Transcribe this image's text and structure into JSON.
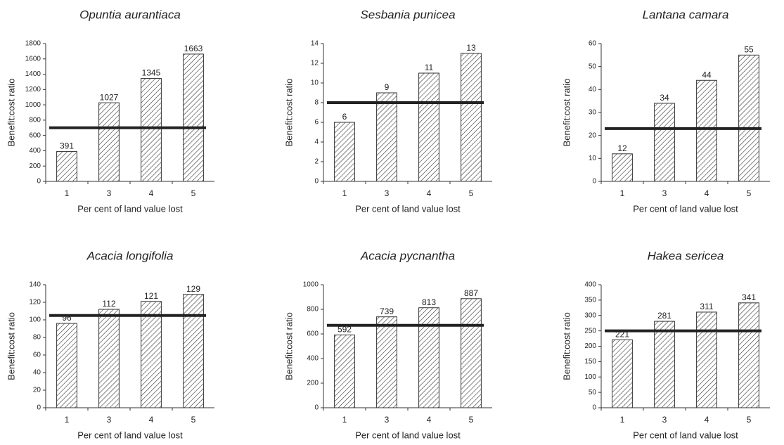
{
  "chart_data": [
    {
      "type": "bar",
      "title": "Opuntia aurantiaca",
      "categories": [
        "1",
        "3",
        "4",
        "5"
      ],
      "values": [
        391,
        1027,
        1345,
        1663
      ],
      "reference_line": 700,
      "xlabel": "Per cent of land value lost",
      "ylabel": "Benefit:cost ratio",
      "ylim": [
        0,
        1800
      ],
      "yticks": [
        0,
        200,
        400,
        600,
        800,
        1000,
        1200,
        1400,
        1600,
        1800
      ],
      "color": "#333333",
      "reference_color": "#222222"
    },
    {
      "type": "bar",
      "title": "Sesbania punicea",
      "categories": [
        "1",
        "3",
        "4",
        "5"
      ],
      "values": [
        6,
        9,
        11,
        13
      ],
      "reference_line": 8,
      "xlabel": "Per cent of land value lost",
      "ylabel": "Benefit:cost ratio",
      "ylim": [
        0,
        14
      ],
      "yticks": [
        0,
        2,
        4,
        6,
        8,
        10,
        12,
        14
      ],
      "color": "#333333",
      "reference_color": "#222222"
    },
    {
      "type": "bar",
      "title": "Lantana camara",
      "categories": [
        "1",
        "3",
        "4",
        "5"
      ],
      "values": [
        12,
        34,
        44,
        55
      ],
      "reference_line": 23,
      "xlabel": "Per cent of land value lost",
      "ylabel": "Benefit:cost ratio",
      "ylim": [
        0,
        60
      ],
      "yticks": [
        0,
        10,
        20,
        30,
        40,
        50,
        60
      ],
      "color": "#333333",
      "reference_color": "#222222"
    },
    {
      "type": "bar",
      "title": "Acacia longifolia",
      "categories": [
        "1",
        "3",
        "4",
        "5"
      ],
      "values": [
        96,
        112,
        121,
        129
      ],
      "reference_line": 105,
      "xlabel": "Per cent of land value lost",
      "ylabel": "Benefit:cost ratio",
      "ylim": [
        0,
        140
      ],
      "yticks": [
        0,
        20,
        40,
        60,
        80,
        100,
        120,
        140
      ],
      "color": "#333333",
      "reference_color": "#222222"
    },
    {
      "type": "bar",
      "title": "Acacia pycnantha",
      "categories": [
        "1",
        "3",
        "4",
        "5"
      ],
      "values": [
        592,
        739,
        813,
        887
      ],
      "reference_line": 670,
      "xlabel": "Per cent of land value lost",
      "ylabel": "Benefit:cost ratio",
      "ylim": [
        0,
        1000
      ],
      "yticks": [
        0,
        200,
        400,
        600,
        800,
        1000
      ],
      "color": "#333333",
      "reference_color": "#222222"
    },
    {
      "type": "bar",
      "title": "Hakea sericea",
      "categories": [
        "1",
        "3",
        "4",
        "5"
      ],
      "values": [
        221,
        281,
        311,
        341
      ],
      "reference_line": 250,
      "xlabel": "Per cent of land value lost",
      "ylabel": "Benefit:cost ratio",
      "ylim": [
        0,
        400
      ],
      "yticks": [
        0,
        50,
        100,
        150,
        200,
        250,
        300,
        350,
        400
      ],
      "color": "#333333",
      "reference_color": "#222222"
    }
  ]
}
